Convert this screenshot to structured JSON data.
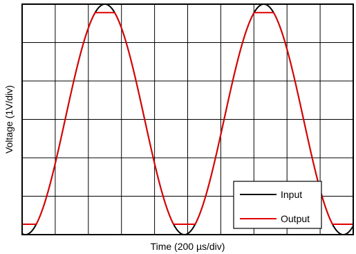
{
  "chart_data": {
    "type": "line",
    "title": "",
    "xlabel": "Time (200 µs/div)",
    "ylabel": "Voltage (1V/div)",
    "x_unit": "µs",
    "x_divisions": 10,
    "y_divisions": 6,
    "xlim": [
      0,
      2000
    ],
    "ylim": [
      0,
      6
    ],
    "grid": true,
    "legend_position": "bottom-right",
    "series": [
      {
        "name": "Input",
        "color": "#000000",
        "shape": "sine",
        "period": 960,
        "min": 0,
        "max": 6,
        "first_peak_x": 500,
        "clip_low": null,
        "clip_high": null
      },
      {
        "name": "Output",
        "color": "#e00000",
        "shape": "clipped-sine",
        "period": 960,
        "min": 0,
        "max": 6,
        "first_peak_x": 500,
        "clip_low": 0.27,
        "clip_high": 5.78
      }
    ]
  }
}
